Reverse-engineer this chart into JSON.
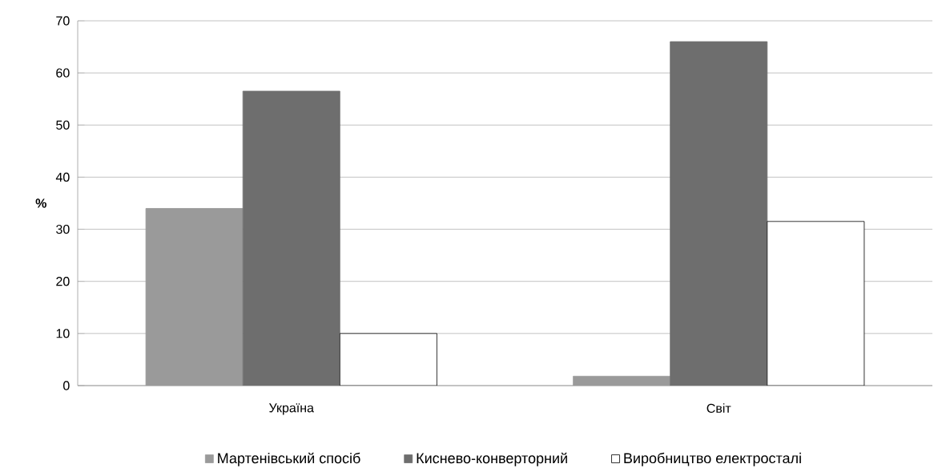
{
  "chart_data": {
    "type": "bar",
    "ylabel": "%",
    "categories": [
      "Україна",
      "Світ"
    ],
    "series": [
      {
        "name": "Мартенівський спосіб",
        "color": "#9a9a9a",
        "values": [
          34,
          1.8
        ]
      },
      {
        "name": "Киснево-конверторний",
        "color": "#6e6e6e",
        "values": [
          56.5,
          66
        ]
      },
      {
        "name": "Виробництво електросталі",
        "color": "#ffffff",
        "values": [
          10,
          31.5
        ]
      }
    ],
    "ylim": [
      0,
      70
    ],
    "yticks": [
      0,
      10,
      20,
      30,
      40,
      50,
      60,
      70
    ],
    "grid": "y",
    "legend": "bottom"
  }
}
